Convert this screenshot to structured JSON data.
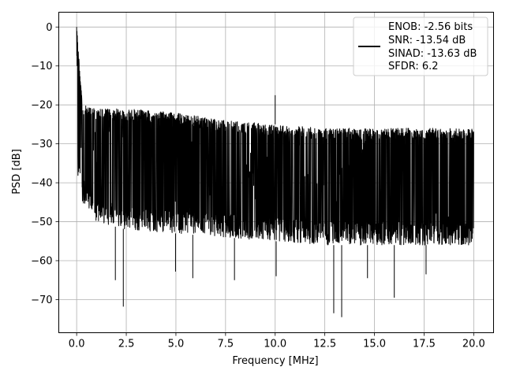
{
  "chart_data": {
    "type": "line",
    "title": "",
    "xlabel": "Frequency [MHz]",
    "ylabel": "PSD [dB]",
    "xlim": [
      -0.9,
      21.0
    ],
    "ylim": [
      -78.5,
      3.8
    ],
    "grid": true,
    "legend_position": "top-right",
    "xticks": [
      0.0,
      2.5,
      5.0,
      7.5,
      10.0,
      12.5,
      15.0,
      17.5,
      20.0
    ],
    "xtick_labels": [
      "0.0",
      "2.5",
      "5.0",
      "7.5",
      "10.0",
      "12.5",
      "15.0",
      "17.5",
      "20.0"
    ],
    "yticks": [
      0,
      -10,
      -20,
      -30,
      -40,
      -50,
      -60,
      -70
    ],
    "ytick_labels": [
      "0",
      "−10",
      "−20",
      "−30",
      "−40",
      "−50",
      "−60",
      "−70"
    ],
    "series": [
      {
        "name": "",
        "color": "#000000",
        "legend_lines": [
          "ENOB: -2.56 bits",
          "SNR: -13.54 dB",
          "SINAD: -13.63 dB",
          "SFDR: 6.2"
        ],
        "envelope": {
          "x": [
            0.0,
            0.3,
            1.0,
            2.5,
            5.0,
            7.5,
            10.0,
            12.5,
            15.0,
            17.5,
            20.0
          ],
          "upper": [
            0.0,
            -20,
            -21,
            -21,
            -22,
            -24,
            -25,
            -26,
            -26,
            -26,
            -26
          ],
          "lower": [
            -37,
            -45,
            -50,
            -52,
            -53,
            -54,
            -55,
            -56,
            -56,
            -56,
            -56
          ]
        },
        "peaks": [
          {
            "x": 0.0,
            "y": 0.0
          },
          {
            "x": 10.0,
            "y": -17.5
          }
        ],
        "dips": [
          {
            "x": 2.35,
            "y": -71.8
          },
          {
            "x": 1.95,
            "y": -65
          },
          {
            "x": 4.98,
            "y": -62.8
          },
          {
            "x": 5.85,
            "y": -64.5
          },
          {
            "x": 7.95,
            "y": -65
          },
          {
            "x": 10.05,
            "y": -64
          },
          {
            "x": 12.95,
            "y": -73.5
          },
          {
            "x": 13.35,
            "y": -74.5
          },
          {
            "x": 14.65,
            "y": -64.5
          },
          {
            "x": 16.0,
            "y": -69.5
          },
          {
            "x": 17.6,
            "y": -63.5
          }
        ]
      }
    ]
  }
}
